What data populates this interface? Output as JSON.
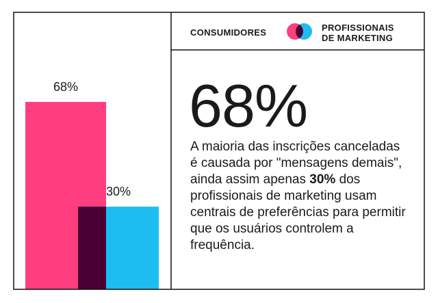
{
  "chart_data": {
    "type": "bar",
    "series": [
      {
        "name": "CONSUMIDORES",
        "color": "#ff3d7f",
        "values": [
          68
        ],
        "value_labels": [
          "68%"
        ]
      },
      {
        "name": "PROFISSIONAIS DE MARKETING",
        "color": "#1dbdf1",
        "values": [
          30
        ],
        "value_labels": [
          "30%"
        ]
      }
    ],
    "overlap_color": "#4a0035",
    "headline": "68%",
    "body": {
      "before": "A maioria das inscrições canceladas é causada por \"mensagens demais\", ainda assim apenas ",
      "highlight": "30%",
      "after": " dos profissionais de marketing usam centrais de preferências para permitir que os usuários controlem a frequência."
    }
  }
}
